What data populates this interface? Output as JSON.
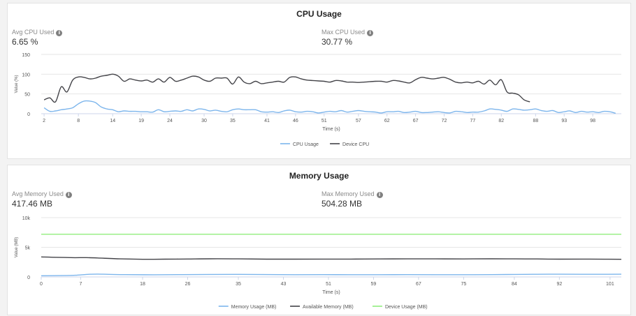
{
  "cpu": {
    "title": "CPU Usage",
    "avg_label": "Avg CPU Used",
    "avg_value": "6.65 %",
    "max_label": "Max CPU Used",
    "max_value": "30.77 %"
  },
  "memory": {
    "title": "Memory Usage",
    "avg_label": "Avg Memory Used",
    "avg_value": "417.46 MB",
    "max_label": "Max Memory Used",
    "max_value": "504.28 MB"
  },
  "icons": {
    "info": "i"
  },
  "chart_data": [
    {
      "type": "line",
      "title": "CPU Usage",
      "xlabel": "Time (s)",
      "ylabel": "Value (%)",
      "ylim": [
        0,
        150
      ],
      "yticks": [
        "0",
        "50",
        "100",
        "150"
      ],
      "xlim": [
        1.5,
        103
      ],
      "xticks": [
        2,
        8,
        14,
        19,
        24,
        30,
        35,
        41,
        46,
        51,
        57,
        62,
        67,
        72,
        77,
        82,
        88,
        93,
        98
      ],
      "grid": true,
      "legend": "bottom-center",
      "series": [
        {
          "name": "CPU Usage",
          "color": "#7cb5ec",
          "points": [
            [
              2,
              15
            ],
            [
              3,
              6
            ],
            [
              4,
              7
            ],
            [
              5,
              10
            ],
            [
              6,
              12
            ],
            [
              7,
              15
            ],
            [
              8,
              25
            ],
            [
              9,
              32
            ],
            [
              10,
              32
            ],
            [
              11,
              28
            ],
            [
              12,
              17
            ],
            [
              13,
              12
            ],
            [
              14,
              10
            ],
            [
              15,
              5
            ],
            [
              16,
              7
            ],
            [
              17,
              6
            ],
            [
              18,
              6
            ],
            [
              19,
              5
            ],
            [
              20,
              5
            ],
            [
              21,
              4
            ],
            [
              22,
              10
            ],
            [
              23,
              5
            ],
            [
              24,
              6
            ],
            [
              25,
              7
            ],
            [
              26,
              6
            ],
            [
              27,
              10
            ],
            [
              28,
              7
            ],
            [
              29,
              12
            ],
            [
              30,
              11
            ],
            [
              31,
              7
            ],
            [
              32,
              9
            ],
            [
              33,
              6
            ],
            [
              34,
              5
            ],
            [
              35,
              10
            ],
            [
              36,
              12
            ],
            [
              37,
              10
            ],
            [
              38,
              10
            ],
            [
              39,
              10
            ],
            [
              40,
              5
            ],
            [
              41,
              4
            ],
            [
              42,
              5
            ],
            [
              43,
              3
            ],
            [
              44,
              7
            ],
            [
              45,
              9
            ],
            [
              46,
              5
            ],
            [
              47,
              4
            ],
            [
              48,
              6
            ],
            [
              49,
              5
            ],
            [
              50,
              2
            ],
            [
              51,
              4
            ],
            [
              52,
              6
            ],
            [
              53,
              5
            ],
            [
              54,
              8
            ],
            [
              55,
              4
            ],
            [
              56,
              6
            ],
            [
              57,
              8
            ],
            [
              58,
              6
            ],
            [
              59,
              5
            ],
            [
              60,
              4
            ],
            [
              61,
              2
            ],
            [
              62,
              5
            ],
            [
              63,
              5
            ],
            [
              64,
              6
            ],
            [
              65,
              3
            ],
            [
              66,
              4
            ],
            [
              67,
              6
            ],
            [
              68,
              3
            ],
            [
              69,
              3
            ],
            [
              70,
              4
            ],
            [
              71,
              5
            ],
            [
              72,
              3
            ],
            [
              73,
              2
            ],
            [
              74,
              6
            ],
            [
              75,
              5
            ],
            [
              76,
              3
            ],
            [
              77,
              4
            ],
            [
              78,
              4
            ],
            [
              79,
              7
            ],
            [
              80,
              12
            ],
            [
              81,
              11
            ],
            [
              82,
              9
            ],
            [
              83,
              6
            ],
            [
              84,
              12
            ],
            [
              85,
              11
            ],
            [
              86,
              9
            ],
            [
              87,
              10
            ],
            [
              88,
              12
            ],
            [
              89,
              8
            ],
            [
              90,
              6
            ],
            [
              91,
              8
            ],
            [
              92,
              3
            ],
            [
              93,
              5
            ],
            [
              94,
              7
            ],
            [
              95,
              3
            ],
            [
              96,
              6
            ],
            [
              97,
              4
            ],
            [
              98,
              5
            ],
            [
              99,
              3
            ],
            [
              100,
              6
            ],
            [
              101,
              5
            ],
            [
              102,
              1
            ]
          ]
        },
        {
          "name": "Device CPU",
          "color": "#434348",
          "points": [
            [
              2,
              35
            ],
            [
              3,
              40
            ],
            [
              4,
              30
            ],
            [
              5,
              68
            ],
            [
              6,
              55
            ],
            [
              7,
              85
            ],
            [
              8,
              93
            ],
            [
              9,
              92
            ],
            [
              10,
              88
            ],
            [
              11,
              90
            ],
            [
              12,
              95
            ],
            [
              13,
              97
            ],
            [
              14,
              100
            ],
            [
              15,
              95
            ],
            [
              16,
              82
            ],
            [
              17,
              88
            ],
            [
              18,
              85
            ],
            [
              19,
              83
            ],
            [
              20,
              85
            ],
            [
              21,
              80
            ],
            [
              22,
              88
            ],
            [
              23,
              80
            ],
            [
              24,
              92
            ],
            [
              25,
              82
            ],
            [
              26,
              85
            ],
            [
              27,
              90
            ],
            [
              28,
              95
            ],
            [
              29,
              93
            ],
            [
              30,
              85
            ],
            [
              31,
              82
            ],
            [
              32,
              90
            ],
            [
              33,
              90
            ],
            [
              34,
              90
            ],
            [
              35,
              75
            ],
            [
              36,
              93
            ],
            [
              37,
              80
            ],
            [
              38,
              76
            ],
            [
              39,
              82
            ],
            [
              40,
              76
            ],
            [
              41,
              78
            ],
            [
              42,
              80
            ],
            [
              43,
              82
            ],
            [
              44,
              80
            ],
            [
              45,
              92
            ],
            [
              46,
              93
            ],
            [
              47,
              88
            ],
            [
              48,
              85
            ],
            [
              49,
              84
            ],
            [
              50,
              83
            ],
            [
              51,
              82
            ],
            [
              52,
              80
            ],
            [
              53,
              84
            ],
            [
              54,
              83
            ],
            [
              55,
              80
            ],
            [
              56,
              80
            ],
            [
              57,
              79
            ],
            [
              58,
              80
            ],
            [
              59,
              81
            ],
            [
              60,
              82
            ],
            [
              61,
              82
            ],
            [
              62,
              80
            ],
            [
              63,
              84
            ],
            [
              64,
              83
            ],
            [
              65,
              80
            ],
            [
              66,
              78
            ],
            [
              67,
              86
            ],
            [
              68,
              92
            ],
            [
              69,
              90
            ],
            [
              70,
              88
            ],
            [
              71,
              90
            ],
            [
              72,
              92
            ],
            [
              73,
              87
            ],
            [
              74,
              80
            ],
            [
              75,
              78
            ],
            [
              76,
              80
            ],
            [
              77,
              78
            ],
            [
              78,
              82
            ],
            [
              79,
              75
            ],
            [
              80,
              85
            ],
            [
              81,
              73
            ],
            [
              82,
              86
            ],
            [
              83,
              55
            ],
            [
              84,
              52
            ],
            [
              85,
              48
            ],
            [
              86,
              35
            ],
            [
              87,
              30
            ]
          ]
        }
      ]
    },
    {
      "type": "line",
      "title": "Memory Usage",
      "xlabel": "Time (s)",
      "ylabel": "Value (MB)",
      "ylim": [
        0,
        10000
      ],
      "yticks": [
        "0",
        "5k",
        "10k"
      ],
      "xlim": [
        0,
        103
      ],
      "xticks": [
        0,
        7,
        18,
        26,
        35,
        43,
        51,
        59,
        67,
        75,
        84,
        92,
        101
      ],
      "grid": true,
      "legend": "bottom-center",
      "series": [
        {
          "name": "Memory Usage (MB)",
          "color": "#7cb5ec",
          "points": [
            [
              0,
              200
            ],
            [
              3,
              220
            ],
            [
              6,
              280
            ],
            [
              8,
              420
            ],
            [
              10,
              480
            ],
            [
              12,
              430
            ],
            [
              15,
              390
            ],
            [
              20,
              370
            ],
            [
              25,
              390
            ],
            [
              30,
              420
            ],
            [
              35,
              430
            ],
            [
              40,
              400
            ],
            [
              45,
              380
            ],
            [
              50,
              390
            ],
            [
              55,
              380
            ],
            [
              60,
              380
            ],
            [
              65,
              390
            ],
            [
              70,
              380
            ],
            [
              75,
              380
            ],
            [
              80,
              390
            ],
            [
              84,
              420
            ],
            [
              88,
              450
            ],
            [
              92,
              460
            ],
            [
              96,
              450
            ],
            [
              100,
              450
            ],
            [
              103,
              460
            ]
          ]
        },
        {
          "name": "Available Memory (MB)",
          "color": "#434348",
          "points": [
            [
              0,
              3380
            ],
            [
              3,
              3300
            ],
            [
              6,
              3250
            ],
            [
              8,
              3260
            ],
            [
              10,
              3200
            ],
            [
              14,
              3050
            ],
            [
              18,
              2980
            ],
            [
              22,
              3000
            ],
            [
              26,
              3020
            ],
            [
              30,
              3060
            ],
            [
              35,
              3050
            ],
            [
              40,
              3000
            ],
            [
              45,
              3000
            ],
            [
              50,
              3010
            ],
            [
              55,
              3010
            ],
            [
              60,
              3040
            ],
            [
              65,
              3050
            ],
            [
              70,
              3050
            ],
            [
              75,
              3040
            ],
            [
              80,
              3060
            ],
            [
              84,
              3050
            ],
            [
              88,
              3030
            ],
            [
              92,
              3000
            ],
            [
              96,
              3010
            ],
            [
              100,
              2990
            ],
            [
              103,
              2980
            ]
          ]
        },
        {
          "name": "Device Usage (MB)",
          "color": "#90ed7d",
          "points": [
            [
              0,
              7200
            ],
            [
              103,
              7200
            ]
          ]
        }
      ]
    }
  ]
}
